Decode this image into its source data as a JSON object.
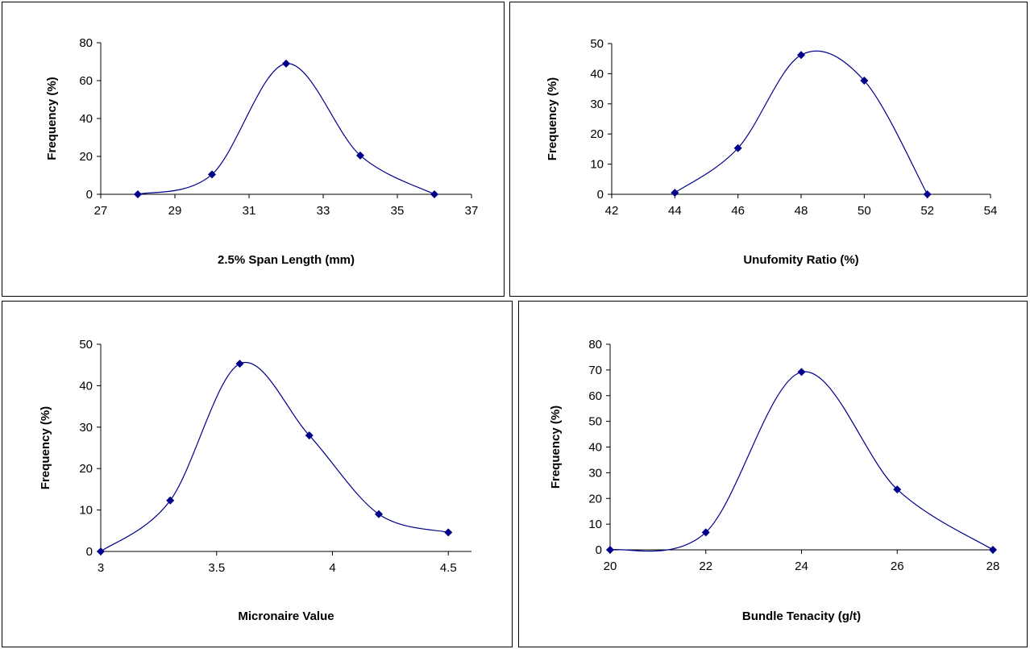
{
  "colors": {
    "series": "#00008b",
    "axis": "#000000",
    "background": "#ffffff"
  },
  "chart_data": [
    {
      "type": "scatter",
      "xlabel": "2.5% Span Length (mm)",
      "ylabel": "Frequency (%)",
      "xlim": [
        27,
        37
      ],
      "ylim": [
        0,
        80
      ],
      "xticks": [
        27,
        29,
        31,
        33,
        35,
        37
      ],
      "yticks": [
        0,
        20,
        40,
        60,
        80
      ],
      "x": [
        28,
        30,
        32,
        34,
        36
      ],
      "y": [
        0,
        10.5,
        69,
        20.5,
        0
      ],
      "marker": "diamond",
      "smoothed_line": true,
      "grid": false
    },
    {
      "type": "scatter",
      "xlabel": "Unufomity Ratio (%)",
      "ylabel": "Frequency (%)",
      "xlim": [
        42,
        54
      ],
      "ylim": [
        0,
        50
      ],
      "xticks": [
        42,
        44,
        46,
        48,
        50,
        52,
        54
      ],
      "yticks": [
        0,
        10,
        20,
        30,
        40,
        50
      ],
      "x": [
        44,
        46,
        48,
        50,
        52
      ],
      "y": [
        0.5,
        15.3,
        46.2,
        37.7,
        0
      ],
      "marker": "diamond",
      "smoothed_line": true,
      "grid": false
    },
    {
      "type": "scatter",
      "xlabel": "Micronaire Value",
      "ylabel": "Frequency (%)",
      "xlim": [
        3,
        4.6
      ],
      "ylim": [
        0,
        50
      ],
      "xticks": [
        3,
        3.5,
        4,
        4.5
      ],
      "yticks": [
        0,
        10,
        20,
        30,
        40,
        50
      ],
      "x": [
        3,
        3.3,
        3.6,
        3.9,
        4.2,
        4.5
      ],
      "y": [
        0,
        12.3,
        45.3,
        28,
        9,
        4.6
      ],
      "marker": "diamond",
      "smoothed_line": true,
      "grid": false
    },
    {
      "type": "scatter",
      "xlabel": "Bundle Tenacity (g/t)",
      "ylabel": "Frequency (%)",
      "xlim": [
        20,
        28
      ],
      "ylim": [
        0,
        80
      ],
      "xticks": [
        20,
        22,
        24,
        26,
        28
      ],
      "yticks": [
        0,
        10,
        20,
        30,
        40,
        50,
        60,
        70,
        80
      ],
      "x": [
        20,
        22,
        24,
        26,
        28
      ],
      "y": [
        0,
        6.8,
        69.2,
        23.5,
        0
      ],
      "marker": "diamond",
      "smoothed_line": true,
      "grid": false
    }
  ]
}
